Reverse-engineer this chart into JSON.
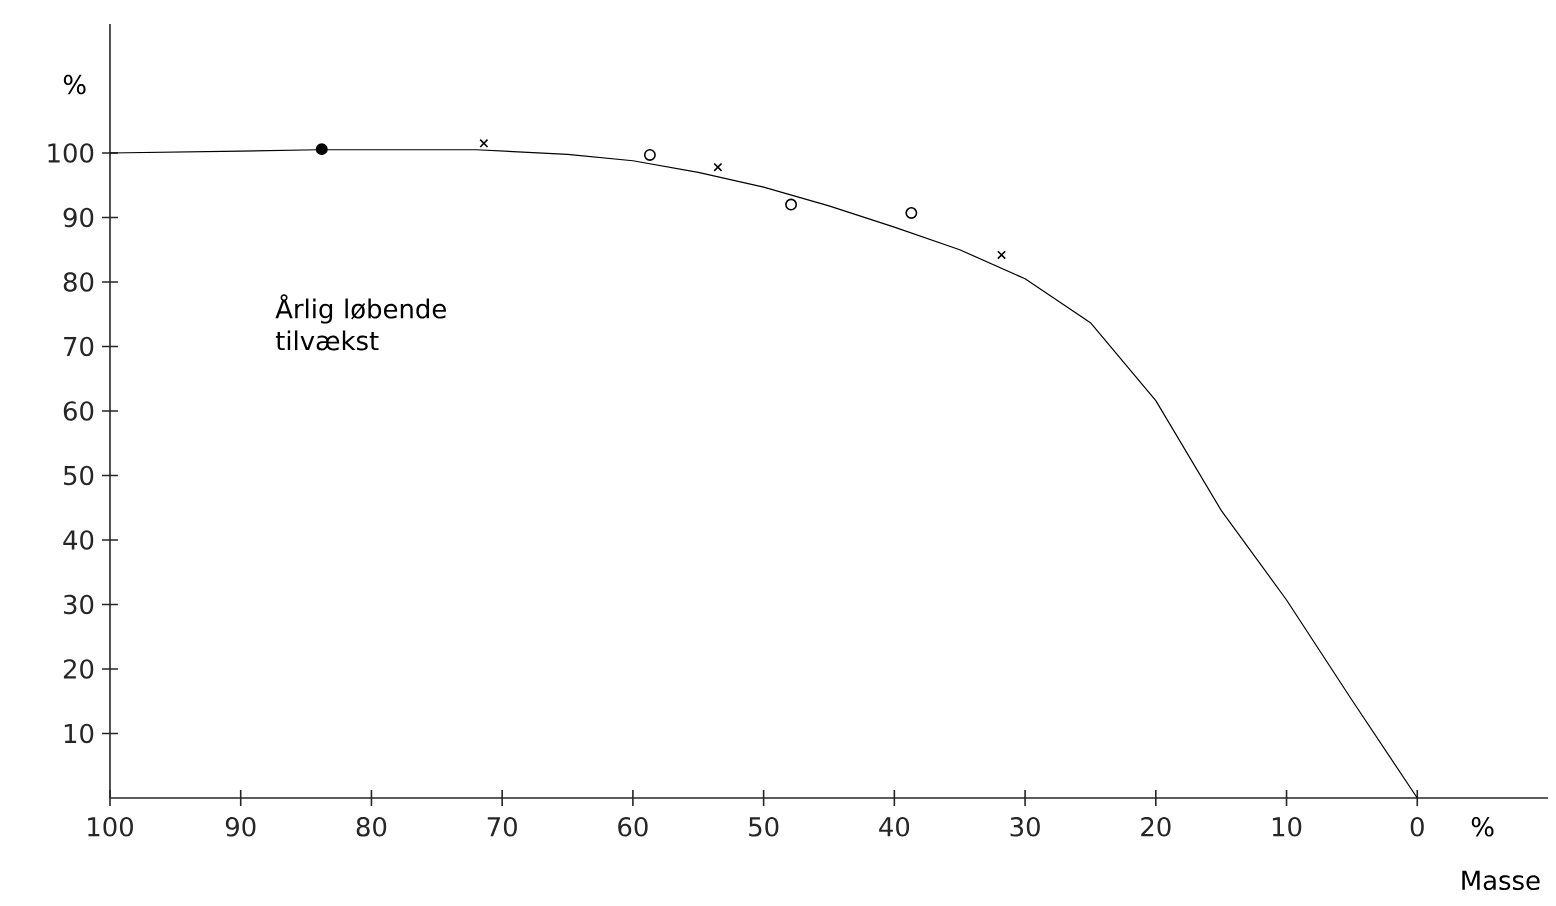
{
  "chart_data": {
    "type": "line",
    "xlabel": "%",
    "ylabel": "%",
    "annotations": [
      "Årlig løbende tilvækst",
      "Masse"
    ],
    "xlim": [
      100,
      -10
    ],
    "xticks": [
      100,
      90,
      80,
      70,
      60,
      50,
      40,
      30,
      20,
      10,
      0
    ],
    "ylim": [
      0,
      120
    ],
    "yticks": [
      10,
      20,
      30,
      40,
      50,
      60,
      70,
      80,
      90,
      100
    ],
    "grid": false,
    "series": [
      {
        "color": "#000000",
        "marker": "none",
        "x": [
          100,
          90,
          84,
          72,
          65,
          60,
          55,
          50,
          45,
          40,
          35,
          30,
          25,
          20,
          15,
          10,
          5,
          0
        ],
        "values": [
          100,
          100.3,
          100.5,
          100.5,
          99.8,
          98.8,
          97,
          94.7,
          91.8,
          88.5,
          85,
          80.5,
          73.7,
          61.6,
          44.6,
          30.7,
          15.2,
          0
        ]
      },
      {
        "type": "scatter",
        "color": "#000000",
        "marker": "filled circle",
        "x": [
          83.8
        ],
        "values": [
          100.6
        ]
      },
      {
        "type": "scatter",
        "color": "#000000",
        "marker": "circle",
        "x": [
          58.7,
          47.9,
          38.7
        ],
        "values": [
          99.7,
          92,
          90.7
        ]
      },
      {
        "type": "scatter",
        "color": "#000000",
        "marker": "cross",
        "x": [
          71.4,
          53.5,
          31.8
        ],
        "values": [
          101.5,
          97.8,
          84.2
        ]
      }
    ]
  }
}
